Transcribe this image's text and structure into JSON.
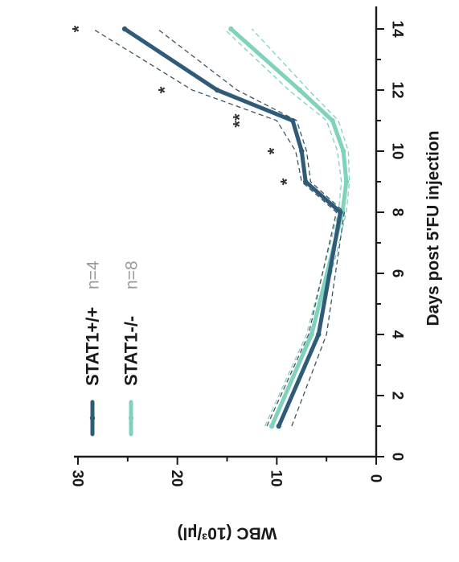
{
  "chart_data": {
    "type": "line",
    "xlabel": "Days post 5'FU injection",
    "ylabel": "WBC (10³/µl)",
    "xlim": [
      0,
      14
    ],
    "ylim": [
      0,
      30
    ],
    "x_ticks": [
      "0",
      "2",
      "4",
      "6",
      "8",
      "10",
      "12",
      "14"
    ],
    "y_ticks": [
      "0",
      "10",
      "20",
      "30"
    ],
    "orientation": "rotated 90° clockwise (x axis runs vertically on the right, y axis increases to the left)",
    "series": [
      {
        "name": "STAT1+/+",
        "n_label": "n=4",
        "color": "#2f5b78",
        "x": [
          1,
          4,
          8,
          9,
          10,
          11,
          12,
          14
        ],
        "values": [
          9.8,
          5.8,
          3.6,
          7.1,
          7.5,
          8.4,
          16.0,
          25.3
        ],
        "upper": [
          11.0,
          6.8,
          4.0,
          7.5,
          8.1,
          10.0,
          18.5,
          28.5
        ],
        "lower": [
          8.5,
          5.0,
          3.2,
          6.6,
          7.0,
          8.0,
          14.0,
          22.0
        ]
      },
      {
        "name": "STAT1-/-",
        "n_label": "n=8",
        "color": "#7fd2bc",
        "x": [
          1,
          4,
          8,
          9,
          10,
          11,
          12,
          14
        ],
        "values": [
          10.5,
          6.5,
          3.4,
          3.0,
          3.3,
          4.4,
          7.7,
          14.6
        ],
        "upper": [
          11.2,
          7.0,
          3.8,
          3.5,
          3.9,
          5.0,
          8.8,
          15.3
        ],
        "lower": [
          9.9,
          6.0,
          3.0,
          2.7,
          2.8,
          3.8,
          6.8,
          12.5
        ]
      }
    ],
    "annotations": [
      {
        "x": 9,
        "text": "*"
      },
      {
        "x": 10,
        "text": "*"
      },
      {
        "x": 11,
        "text": "**"
      },
      {
        "x": 12,
        "text": "*"
      },
      {
        "x": 14,
        "text": "*"
      }
    ],
    "legend_position": "top-left"
  }
}
